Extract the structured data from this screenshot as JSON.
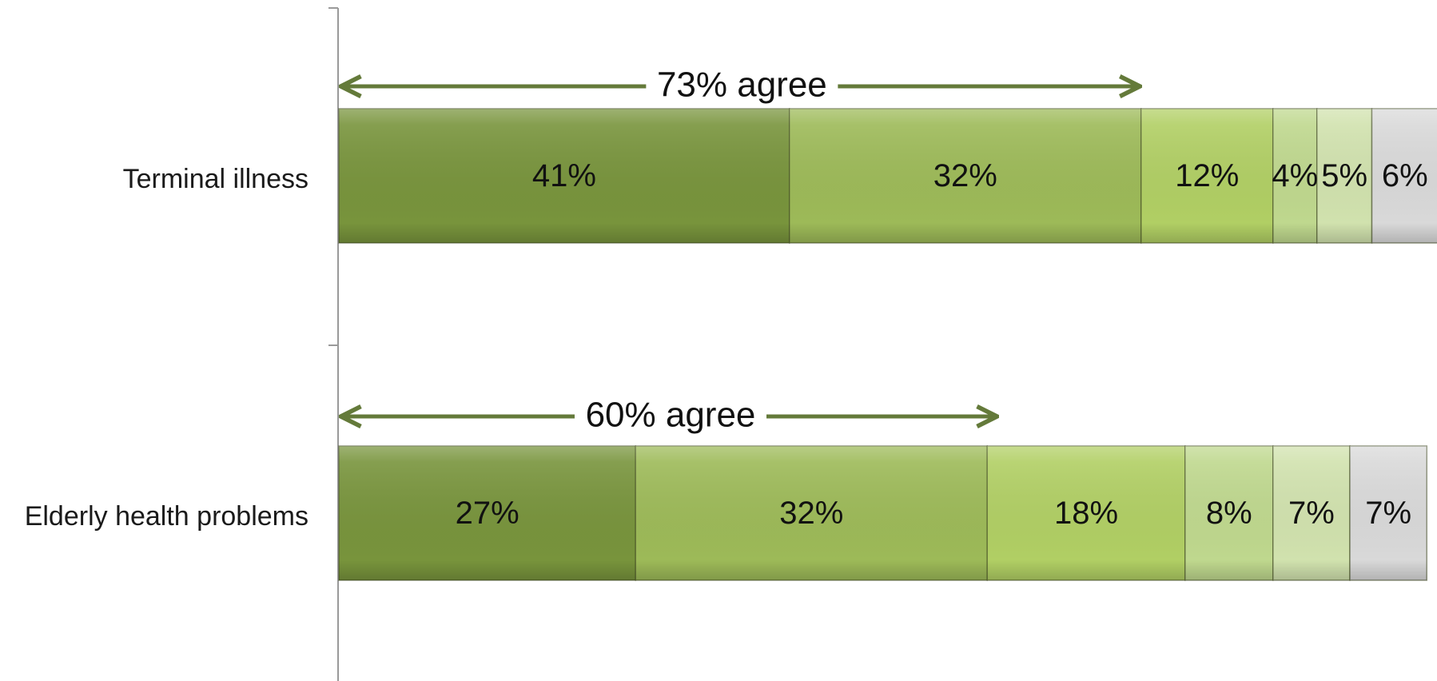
{
  "chart_data": {
    "type": "bar",
    "orientation": "horizontal",
    "stacked": true,
    "categories": [
      "Terminal illness",
      "Elderly health problems"
    ],
    "series": [
      {
        "values": [
          41,
          27
        ],
        "color": "#78943c"
      },
      {
        "values": [
          32,
          32
        ],
        "color": "#9dba58"
      },
      {
        "values": [
          12,
          18
        ],
        "color": "#b1cf64"
      },
      {
        "values": [
          4,
          8
        ],
        "color": "#bfd88e"
      },
      {
        "values": [
          5,
          7
        ],
        "color": "#d1e2ae"
      },
      {
        "values": [
          6,
          7
        ],
        "color": "#d9d9d9"
      }
    ],
    "data_labels": [
      [
        "41%",
        "32%",
        "12%",
        "4%",
        "5%",
        "6%"
      ],
      [
        "27%",
        "32%",
        "18%",
        "8%",
        "7%",
        "7%"
      ]
    ],
    "annotations": [
      {
        "category": "Terminal illness",
        "text": "73% agree",
        "value": 73
      },
      {
        "category": "Elderly health problems",
        "text": "60% agree",
        "value": 60
      }
    ],
    "arrow_color": "#647a3a",
    "axis_color": "#9a9a9a",
    "legend": "none",
    "grid": false
  }
}
